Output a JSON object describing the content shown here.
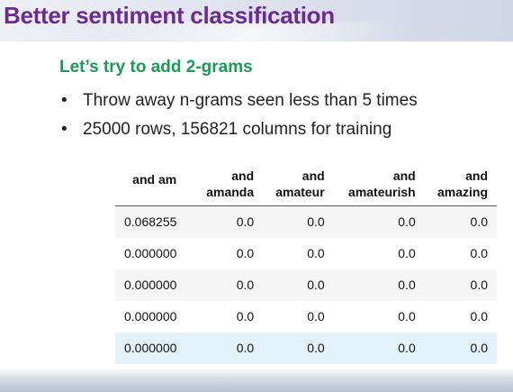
{
  "slide": {
    "title": "Better sentiment classification",
    "subtitle": "Let’s try to add 2-grams",
    "bullets": [
      "Throw away n-grams seen less than 5 times",
      "25000 rows, 156821 columns for training"
    ],
    "bullet_glyph": "•"
  },
  "table": {
    "headers": [
      {
        "line1": "and am",
        "line2": ""
      },
      {
        "line1": "and",
        "line2": "amanda"
      },
      {
        "line1": "and",
        "line2": "amateur"
      },
      {
        "line1": "and",
        "line2": "amateurish"
      },
      {
        "line1": "and",
        "line2": "amazing"
      }
    ],
    "rows": [
      [
        "0.068255",
        "0.0",
        "0.0",
        "0.0",
        "0.0"
      ],
      [
        "0.000000",
        "0.0",
        "0.0",
        "0.0",
        "0.0"
      ],
      [
        "0.000000",
        "0.0",
        "0.0",
        "0.0",
        "0.0"
      ],
      [
        "0.000000",
        "0.0",
        "0.0",
        "0.0",
        "0.0"
      ],
      [
        "0.000000",
        "0.0",
        "0.0",
        "0.0",
        "0.0"
      ]
    ],
    "highlighted_row": 4
  },
  "colors": {
    "title": "#6a2c91",
    "subtitle": "#1a9b55",
    "row_highlight": "#e3f1fb",
    "row_stripe": "#f5f5f5"
  }
}
